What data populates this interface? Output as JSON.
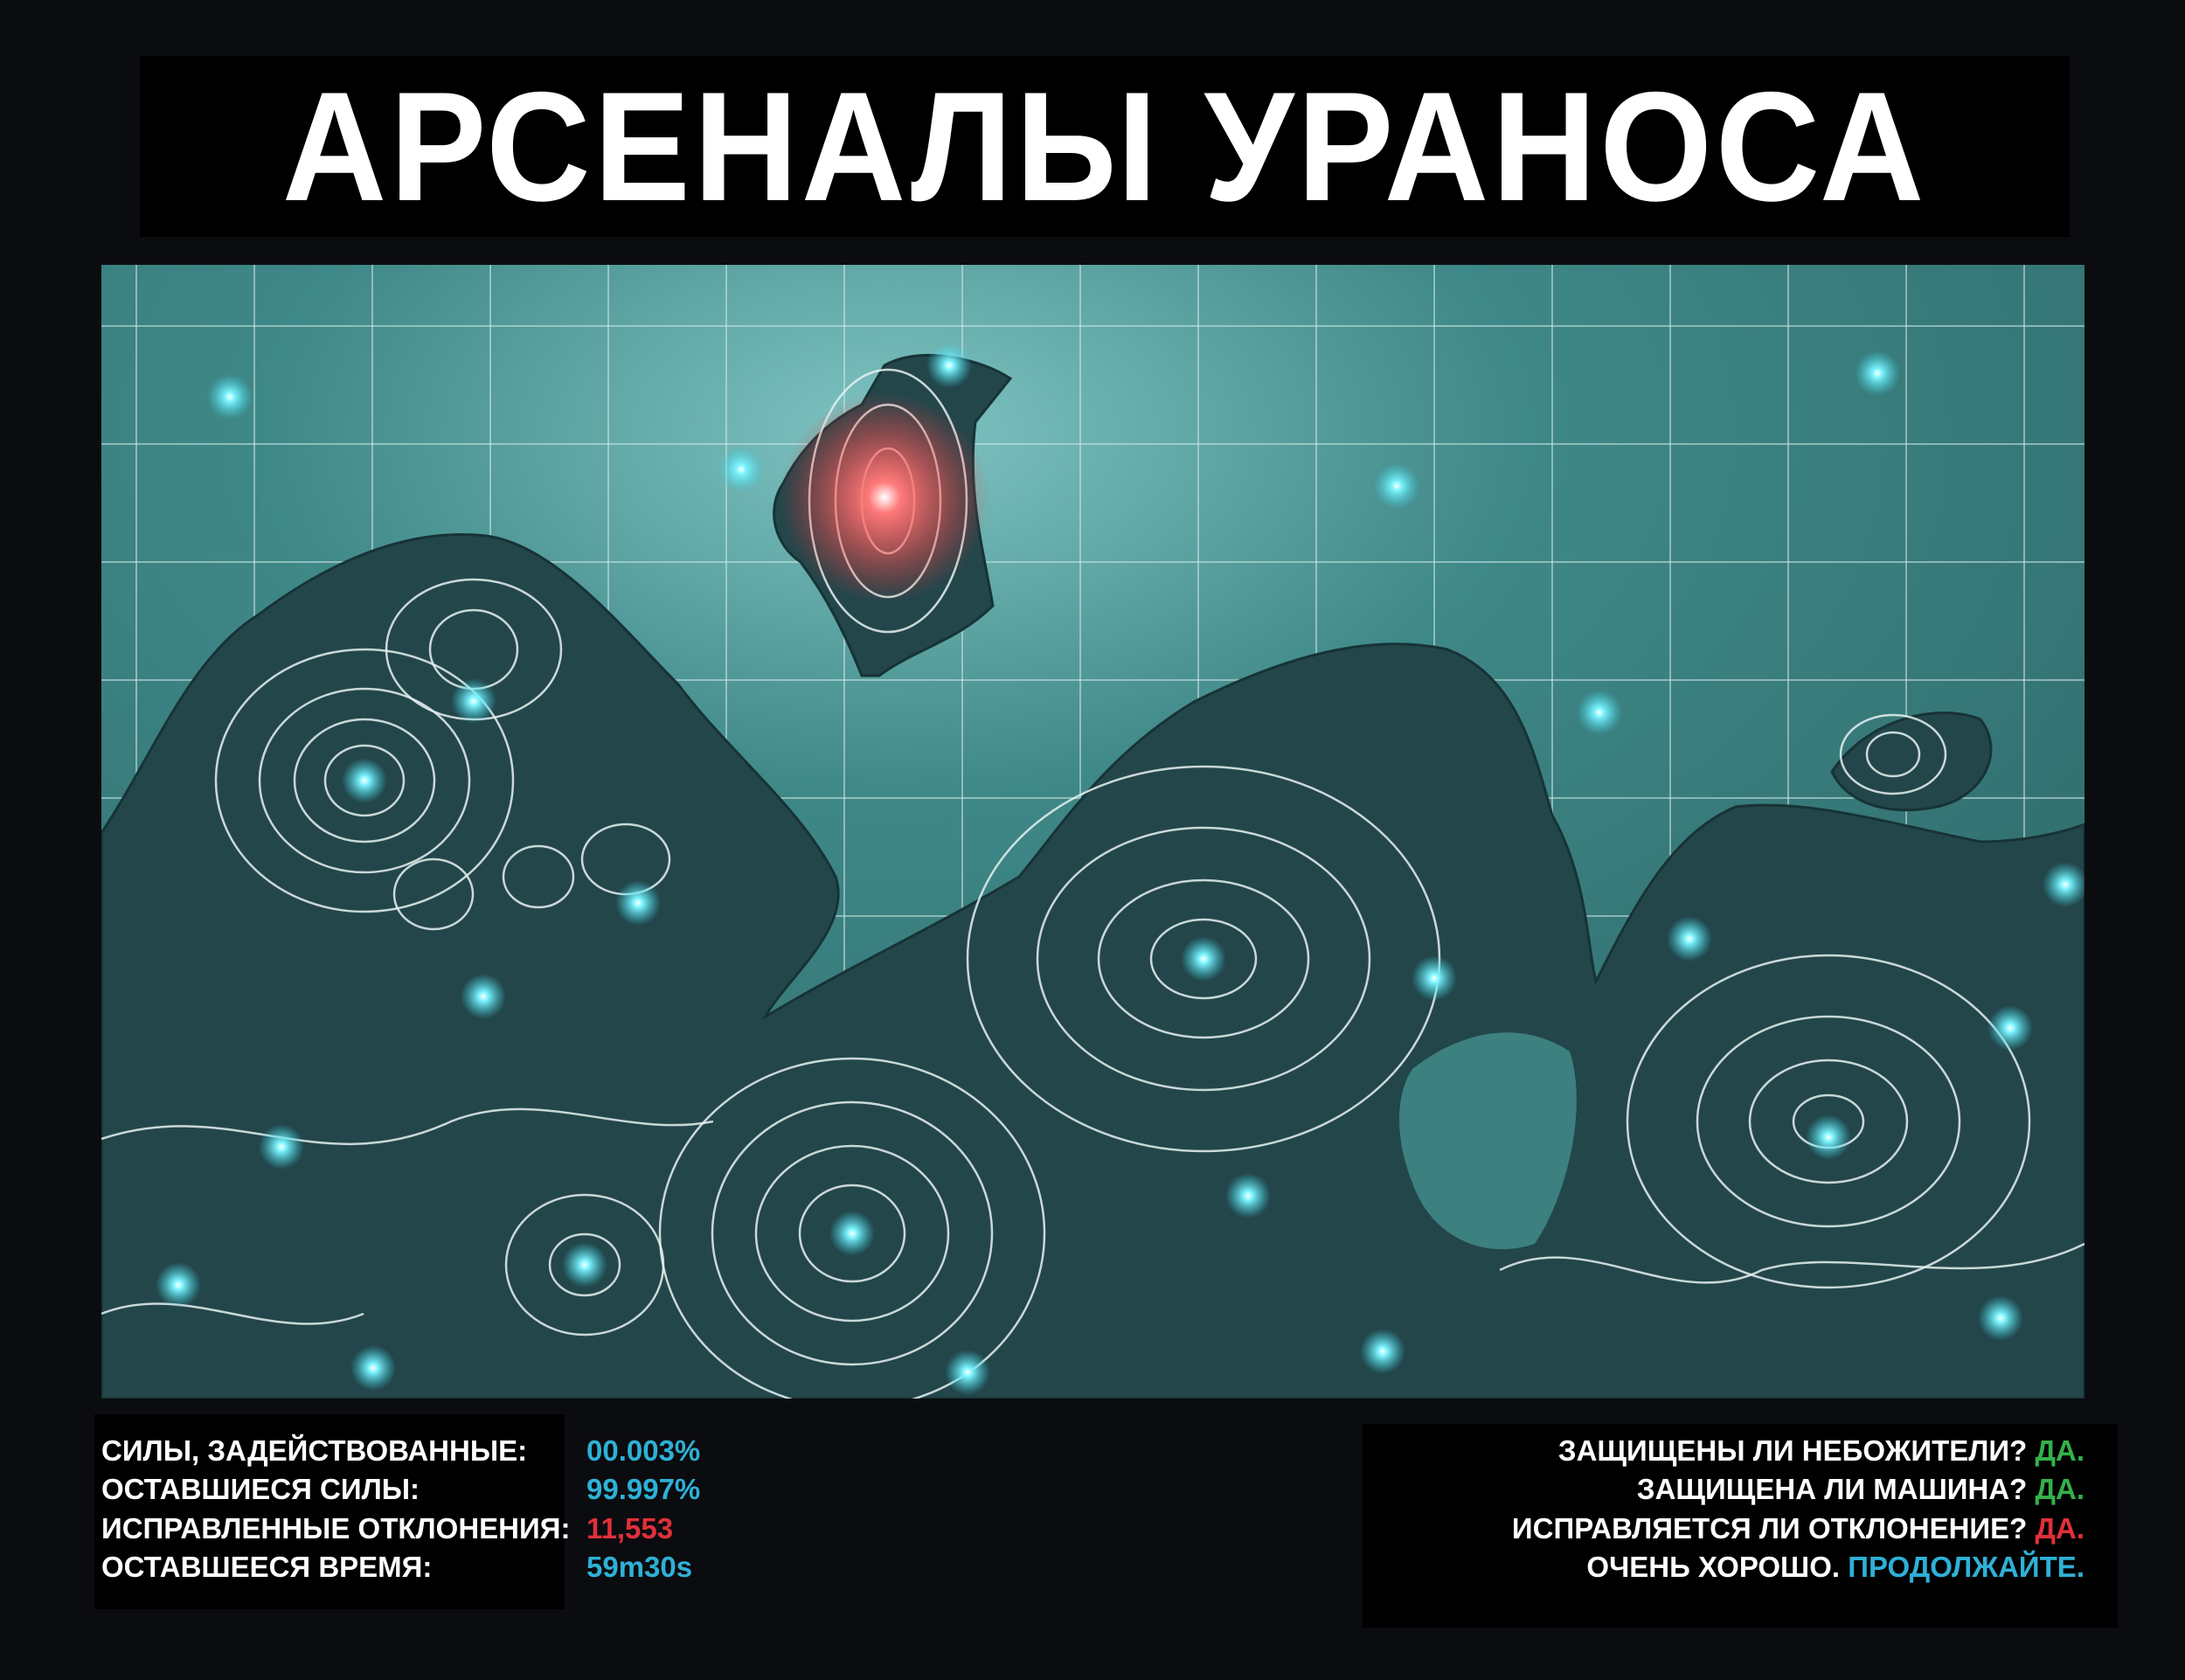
{
  "title": "АРСЕНАЛЫ УРАНОСА",
  "colors": {
    "cyan": "#2fb0d6",
    "red": "#e0303a",
    "green": "#35b04a",
    "map_water": "#3f8585",
    "map_land": "#23464b",
    "contour": "#e6f2f0",
    "glow_red": "#ff5a5a"
  },
  "stats": [
    {
      "label": "СИЛЫ, ЗАДЕЙСТВОВАННЫЕ:",
      "value": "00.003%",
      "color": "cyan"
    },
    {
      "label": "ОСТАВШИЕСЯ СИЛЫ:",
      "value": "99.997%",
      "color": "cyan"
    },
    {
      "label": "ИСПРАВЛЕННЫЕ ОТКЛОНЕНИЯ:",
      "value": "11,553",
      "color": "red"
    },
    {
      "label": "ОСТАВШЕЕСЯ ВРЕМЯ:",
      "value": "59m30s",
      "color": "cyan"
    }
  ],
  "checks": [
    {
      "question": "ЗАЩИЩЕНЫ ЛИ НЕБОЖИТЕЛИ?",
      "answer": "ДА.",
      "color": "green"
    },
    {
      "question": "ЗАЩИЩЕНА ЛИ МАШИНА?",
      "answer": "ДА.",
      "color": "green"
    },
    {
      "question": "ИСПРАВЛЯЕТСЯ ЛИ ОТКЛОНЕНИЕ?",
      "answer": "ДА.",
      "color": "red"
    },
    {
      "question": "ОЧЕНЬ ХОРОШО.",
      "answer": "ПРОДОЛЖАЙТЕ.",
      "color": "cyan"
    }
  ]
}
